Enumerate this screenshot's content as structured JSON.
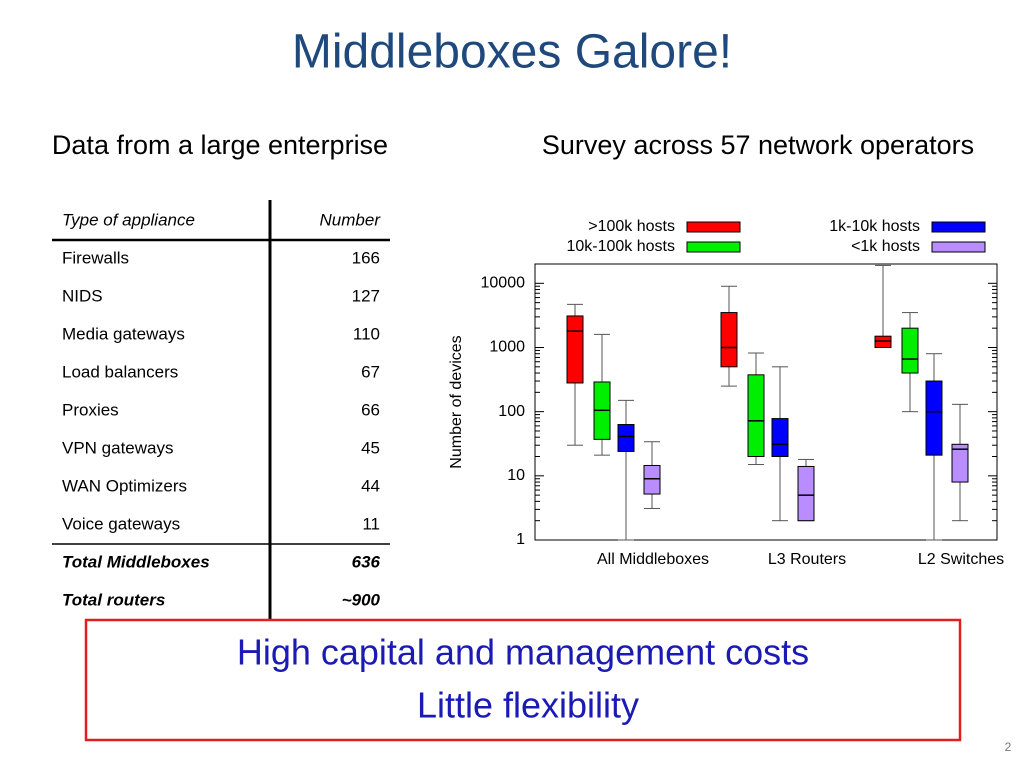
{
  "title": "Middleboxes Galore!",
  "left_heading": "Data from a large enterprise",
  "right_heading": "Survey across 57 network operators",
  "table": {
    "header": [
      "Type of appliance",
      "Number"
    ],
    "rows": [
      [
        "Firewalls",
        166
      ],
      [
        "NIDS",
        127
      ],
      [
        "Media gateways",
        110
      ],
      [
        "Load balancers",
        67
      ],
      [
        "Proxies",
        66
      ],
      [
        "VPN gateways",
        45
      ],
      [
        "WAN Optimizers",
        44
      ],
      [
        "Voice gateways",
        11
      ]
    ],
    "totals": [
      [
        "Total Middleboxes",
        636
      ],
      [
        "Total routers",
        "~900"
      ]
    ]
  },
  "chart_data": {
    "type": "box",
    "y_label": "Number of devices",
    "categories": [
      "All Middleboxes",
      "L3 Routers",
      "L2 Switches"
    ],
    "log_scale": true,
    "ylim": [
      1,
      20000
    ],
    "yticks": [
      1,
      10,
      100,
      1000,
      10000
    ],
    "legend": "top",
    "series": [
      {
        "name": ">100k hosts",
        "color": "#ff0000",
        "min": [
          30,
          250,
          1000
        ],
        "q1": [
          280,
          500,
          1000
        ],
        "median": [
          1800,
          1000,
          1260
        ],
        "q3": [
          3100,
          3500,
          1500
        ],
        "max": [
          4700,
          9000,
          19000
        ]
      },
      {
        "name": "10k-100k hosts",
        "color": "#00ee00",
        "min": [
          21,
          15,
          100
        ],
        "q1": [
          37,
          20,
          400
        ],
        "median": [
          105,
          72,
          660
        ],
        "q3": [
          290,
          375,
          2000
        ],
        "max": [
          1600,
          820,
          3500
        ]
      },
      {
        "name": "1k-10k hosts",
        "color": "#0000ff",
        "min": [
          1,
          2,
          1
        ],
        "q1": [
          24,
          20,
          21
        ],
        "median": [
          41,
          31,
          100
        ],
        "q3": [
          63,
          78,
          300
        ],
        "max": [
          150,
          500,
          800
        ]
      },
      {
        "name": "<1k hosts",
        "color": "#b98cff",
        "min": [
          3.1,
          2,
          2
        ],
        "q1": [
          5.2,
          2,
          8
        ],
        "median": [
          9,
          5,
          26
        ],
        "q3": [
          14.5,
          14,
          31
        ],
        "max": [
          34,
          18,
          130
        ]
      }
    ]
  },
  "callout": [
    "High capital and  management costs",
    "Little flexibility"
  ],
  "page_number": "2"
}
